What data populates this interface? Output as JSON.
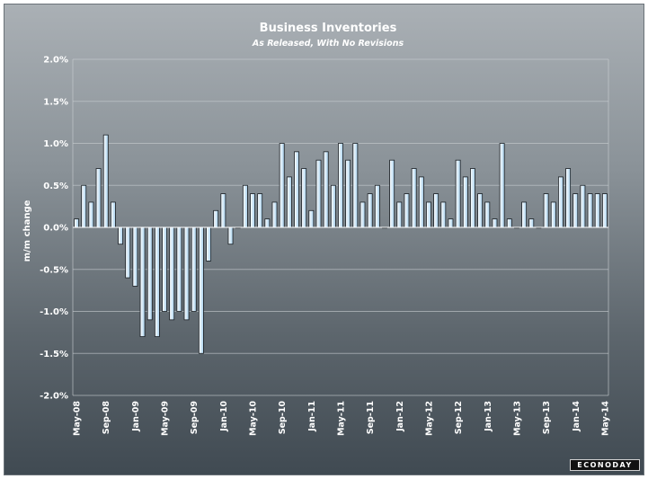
{
  "chart_data": {
    "type": "bar",
    "title": "Business Inventories",
    "subtitle": "As Released, With No Revisions",
    "ylabel": "m/m change",
    "xlabel": "",
    "ylim": [
      -2.0,
      2.0
    ],
    "y_ticks": [
      "2.0%",
      "1.5%",
      "1.0%",
      "0.5%",
      "0.0%",
      "-0.5%",
      "-1.0%",
      "-1.5%",
      "-2.0%"
    ],
    "y_tick_values": [
      2.0,
      1.5,
      1.0,
      0.5,
      0.0,
      -0.5,
      -1.0,
      -1.5,
      -2.0
    ],
    "x_tick_labels": [
      "May-08",
      "Sep-08",
      "Jan-09",
      "May-09",
      "Sep-09",
      "Jan-10",
      "May-10",
      "Sep-10",
      "Jan-11",
      "May-11",
      "Sep-11",
      "Jan-12",
      "May-12",
      "Sep-12",
      "Jan-13",
      "May-13",
      "Sep-13",
      "Jan-14",
      "May-14"
    ],
    "categories": [
      "May-08",
      "Jun-08",
      "Jul-08",
      "Aug-08",
      "Sep-08",
      "Oct-08",
      "Nov-08",
      "Dec-08",
      "Jan-09",
      "Feb-09",
      "Mar-09",
      "Apr-09",
      "May-09",
      "Jun-09",
      "Jul-09",
      "Aug-09",
      "Sep-09",
      "Oct-09",
      "Nov-09",
      "Dec-09",
      "Jan-10",
      "Feb-10",
      "Mar-10",
      "Apr-10",
      "May-10",
      "Jun-10",
      "Jul-10",
      "Aug-10",
      "Sep-10",
      "Oct-10",
      "Nov-10",
      "Dec-10",
      "Jan-11",
      "Feb-11",
      "Mar-11",
      "Apr-11",
      "May-11",
      "Jun-11",
      "Jul-11",
      "Aug-11",
      "Sep-11",
      "Oct-11",
      "Nov-11",
      "Dec-11",
      "Jan-12",
      "Feb-12",
      "Mar-12",
      "Apr-12",
      "May-12",
      "Jun-12",
      "Jul-12",
      "Aug-12",
      "Sep-12",
      "Oct-12",
      "Nov-12",
      "Dec-12",
      "Jan-13",
      "Feb-13",
      "Mar-13",
      "Apr-13",
      "May-13",
      "Jun-13",
      "Jul-13",
      "Aug-13",
      "Sep-13",
      "Oct-13",
      "Nov-13",
      "Dec-13",
      "Jan-14",
      "Feb-14",
      "Mar-14",
      "Apr-14",
      "May-14"
    ],
    "values": [
      0.1,
      0.5,
      0.3,
      0.7,
      1.1,
      0.3,
      -0.2,
      -0.6,
      -0.7,
      -1.3,
      -1.1,
      -1.3,
      -1.0,
      -1.1,
      -1.0,
      -1.1,
      -1.0,
      -1.5,
      -0.4,
      0.2,
      0.4,
      -0.2,
      0.0,
      0.5,
      0.4,
      0.4,
      0.1,
      0.3,
      1.0,
      0.6,
      0.9,
      0.7,
      0.2,
      0.8,
      0.9,
      0.5,
      1.0,
      0.8,
      1.0,
      0.3,
      0.4,
      0.5,
      0.0,
      0.8,
      0.3,
      0.4,
      0.7,
      0.6,
      0.3,
      0.4,
      0.3,
      0.1,
      0.8,
      0.6,
      0.7,
      0.4,
      0.3,
      0.1,
      1.0,
      0.1,
      0.0,
      0.3,
      0.1,
      0.0,
      0.4,
      0.3,
      0.6,
      0.7,
      0.4,
      0.5,
      0.4,
      0.4,
      0.4
    ],
    "grid": true,
    "colors": {
      "bar_top": "#ffffff",
      "bar_bottom": "#a9d2ee",
      "bar_outline": "#1a1f24"
    }
  },
  "branding": {
    "logo_text": "ECONODAY"
  }
}
